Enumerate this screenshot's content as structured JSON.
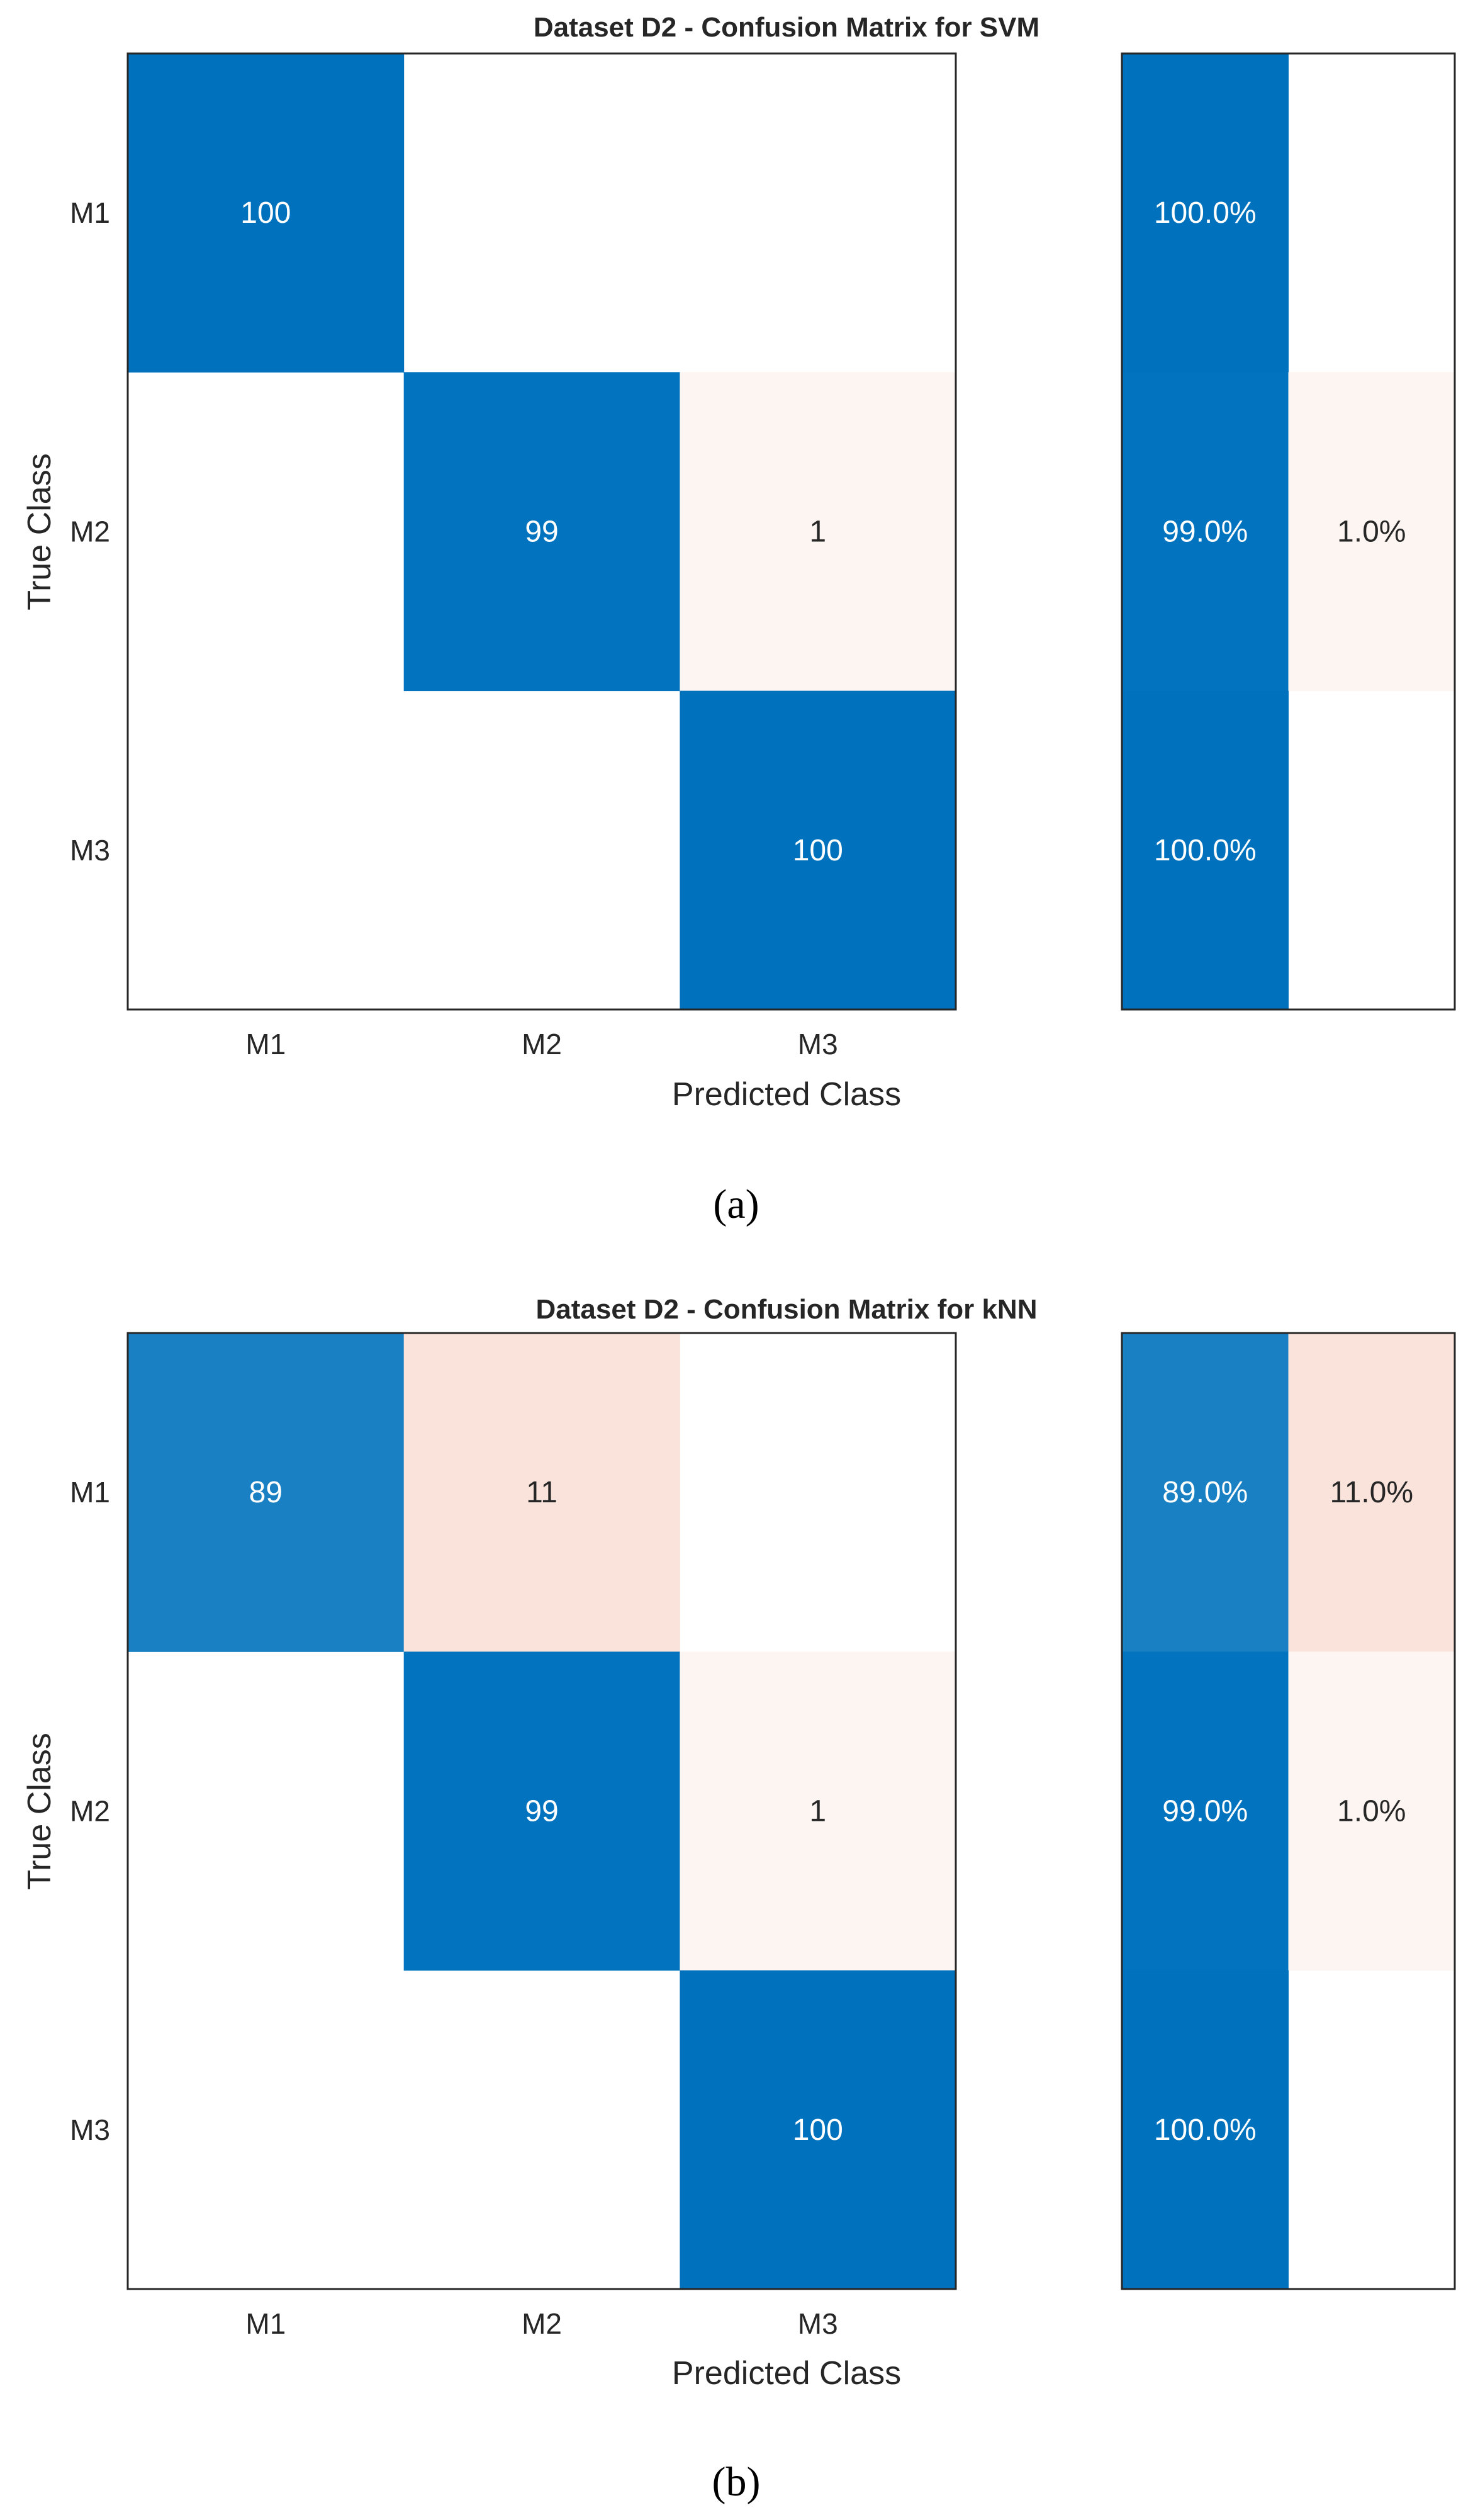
{
  "chart_data": [
    {
      "type": "heatmap",
      "title": "Dataset D2 - Confusion Matrix for SVM",
      "xlabel": "Predicted Class",
      "ylabel": "True Class",
      "classes": [
        "M1",
        "M2",
        "M3"
      ],
      "matrix": [
        [
          100,
          0,
          0
        ],
        [
          0,
          99,
          1
        ],
        [
          0,
          0,
          100
        ]
      ],
      "row_summary_labels": [
        [
          "100.0%",
          ""
        ],
        [
          "99.0%",
          "1.0%"
        ],
        [
          "100.0%",
          ""
        ]
      ],
      "row_summary_values": [
        [
          100.0,
          0
        ],
        [
          99.0,
          1.0
        ],
        [
          100.0,
          0
        ]
      ],
      "caption": "(a)"
    },
    {
      "type": "heatmap",
      "title": "Dataset D2 - Confusion Matrix for kNN",
      "xlabel": "Predicted Class",
      "ylabel": "True Class",
      "classes": [
        "M1",
        "M2",
        "M3"
      ],
      "matrix": [
        [
          89,
          11,
          0
        ],
        [
          0,
          99,
          1
        ],
        [
          0,
          0,
          100
        ]
      ],
      "row_summary_labels": [
        [
          "89.0%",
          "11.0%"
        ],
        [
          "99.0%",
          "1.0%"
        ],
        [
          "100.0%",
          ""
        ]
      ],
      "row_summary_values": [
        [
          89.0,
          11.0
        ],
        [
          99.0,
          1.0
        ],
        [
          100.0,
          0
        ]
      ],
      "caption": "(b)"
    }
  ],
  "colors": {
    "correct": "#0072BD",
    "incorrect": "#D95319",
    "dark_text": "#262626",
    "light_text": "#ffffff"
  }
}
